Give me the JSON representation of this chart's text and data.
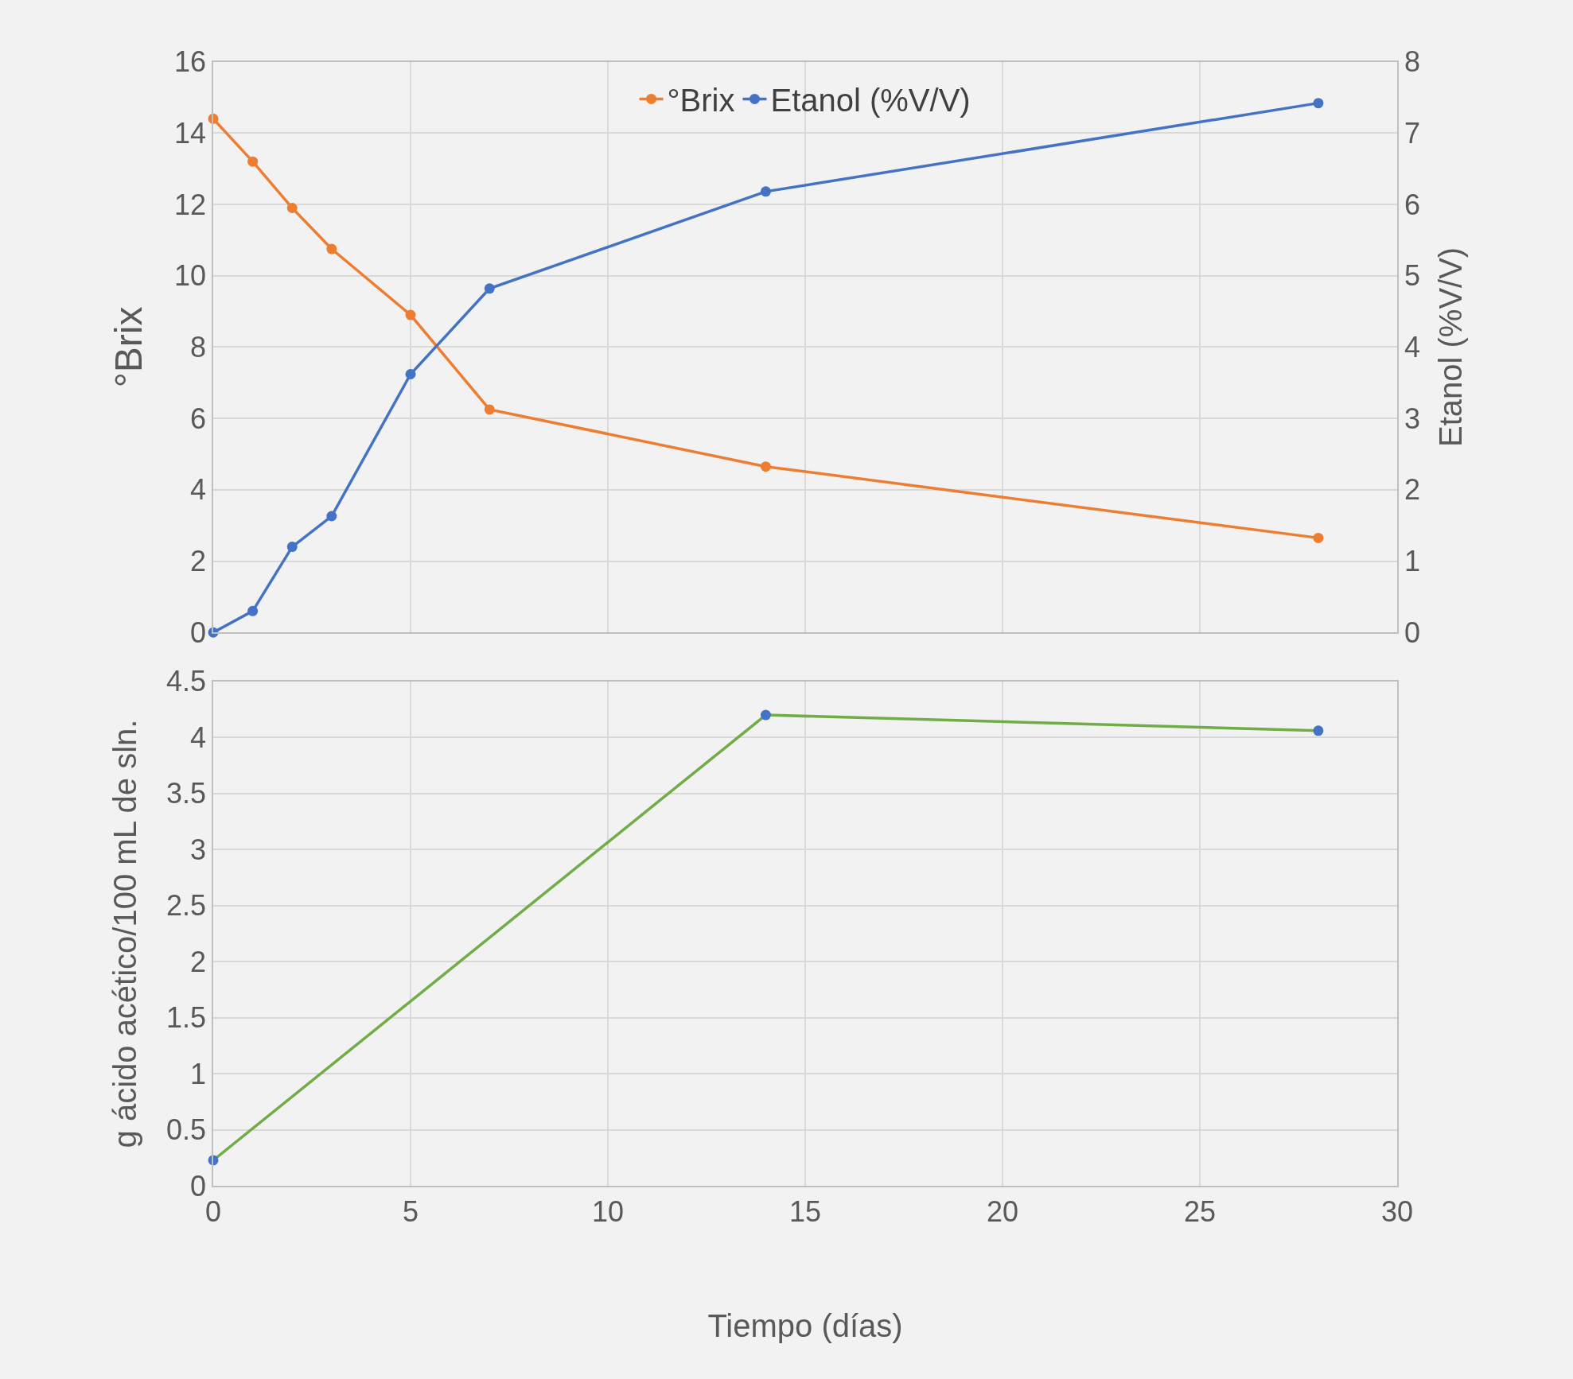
{
  "chart_data": [
    {
      "type": "line",
      "ylabel": "°Brix",
      "y2label": "Etanol (%V/V)",
      "x": [
        0,
        1,
        2,
        3,
        5,
        7,
        14,
        28
      ],
      "series": [
        {
          "name": "°Brix",
          "color": "#ed7d31",
          "values": [
            14.4,
            13.2,
            11.9,
            10.75,
            8.9,
            6.25,
            4.65,
            2.65
          ]
        },
        {
          "name": "Etanol (%V/V)",
          "color": "#4472c4",
          "axis": "y2",
          "values": [
            0,
            0.3,
            1.2,
            1.63,
            3.62,
            4.82,
            6.18,
            7.42
          ]
        }
      ],
      "xlim": [
        0,
        30
      ],
      "xticks": [
        0,
        5,
        10,
        15,
        20,
        25,
        30
      ],
      "ylim": [
        0,
        16
      ],
      "yticks": [
        0,
        2,
        4,
        6,
        8,
        10,
        12,
        14,
        16
      ],
      "y2lim": [
        0,
        8
      ],
      "y2ticks": [
        0,
        1,
        2,
        3,
        4,
        5,
        6,
        7,
        8
      ],
      "tick_labels": "y",
      "grid": true,
      "legend": "top",
      "marker": "circle",
      "line_style": "solid"
    },
    {
      "type": "line",
      "xlabel": "Tiempo (días)",
      "ylabel": "g ácido acético/100 mL de sln.",
      "x": [
        0,
        14,
        28
      ],
      "values": [
        0.23,
        4.2,
        4.06
      ],
      "color": "#70ad47",
      "colors": [
        "#4472c4",
        "#4472c4",
        "#4472c4"
      ],
      "xlim": [
        0,
        30
      ],
      "xticks": [
        0,
        5,
        10,
        15,
        20,
        25,
        30
      ],
      "ylim": [
        0,
        4.5
      ],
      "yticks": [
        0,
        0.5,
        1,
        1.5,
        2,
        2.5,
        3,
        3.5,
        4,
        4.5
      ],
      "grid": true,
      "marker": "circle",
      "line_style": "solid"
    }
  ]
}
